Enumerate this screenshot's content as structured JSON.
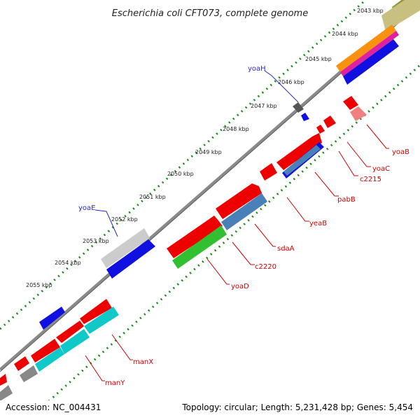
{
  "title": "Escherichia coli CFT073, complete genome",
  "footer": {
    "accession": "Accession: NC_004431",
    "summary": "Topology: circular; Length: 5,231,428 bp; Genes: 5,454"
  },
  "ticks": [
    {
      "label": "2043 kbp"
    },
    {
      "label": "2044 kbp"
    },
    {
      "label": "2045 kbp"
    },
    {
      "label": "2046 kbp"
    },
    {
      "label": "2047 kbp"
    },
    {
      "label": "2048 kbp"
    },
    {
      "label": "2049 kbp"
    },
    {
      "label": "2050 kbp"
    },
    {
      "label": "2051 kbp"
    },
    {
      "label": "2052 kbp"
    },
    {
      "label": "2053 kbp"
    },
    {
      "label": "2054 kbp"
    },
    {
      "label": "2055 kbp"
    }
  ],
  "genes_outer": [
    {
      "name": "yoaH",
      "color": "#2a2ad0"
    },
    {
      "name": "yoaE",
      "color": "#2a2ad0"
    }
  ],
  "genes_inner": [
    {
      "name": "yoaB",
      "color": "#d00000"
    },
    {
      "name": "yoaC",
      "color": "#d00000"
    },
    {
      "name": "c2215",
      "color": "#d00000"
    },
    {
      "name": "pabB",
      "color": "#d00000"
    },
    {
      "name": "yeaB",
      "color": "#d00000"
    },
    {
      "name": "sdaA",
      "color": "#d00000"
    },
    {
      "name": "c2220",
      "color": "#d00000"
    },
    {
      "name": "yoaD",
      "color": "#d00000"
    },
    {
      "name": "manX",
      "color": "#d00000"
    },
    {
      "name": "manY",
      "color": "#d00000"
    }
  ],
  "colors": {
    "backbone": "#8a8a8a",
    "tick_dots": "#1a8a1a",
    "red": "#ee0000",
    "blue": "#1010e0",
    "cyan": "#10c8c8",
    "green": "#30c030",
    "steel": "#4a80b8",
    "gray": "#888888",
    "silver": "#cccccc",
    "olive": "#8a9a30",
    "orange": "#f89010",
    "magenta": "#e020a0",
    "pink": "#f08080",
    "khaki": "#c8c080"
  }
}
